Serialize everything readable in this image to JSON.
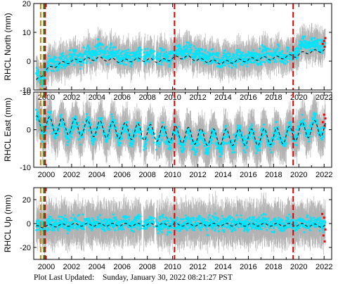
{
  "footer": {
    "label": "Plot Last Updated:",
    "date": "Sunday, January 30, 2022 08:21:27 PST"
  },
  "colors": {
    "daily_positions": "#00e5ff",
    "error_bars": "#b3b3b3",
    "recent_positions": "#ff0000",
    "model_fit": "#000000",
    "event_line_red": "#e00000",
    "event_line_green": "#2a8a2a",
    "event_line_orange": "#e07a00"
  },
  "chart_data": [
    {
      "type": "scatter",
      "ylabel": "RHCL North (mm)",
      "xlim": [
        1999.0,
        2022.6
      ],
      "ylim": [
        -10,
        20
      ],
      "yticks": [
        -10,
        0,
        10,
        20
      ],
      "xticks": [
        "2000",
        "2002",
        "2004",
        "2006",
        "2008",
        "2010",
        "2012",
        "2014",
        "2016",
        "2018",
        "2020",
        "2022"
      ],
      "series": [
        {
          "role": "daily",
          "points": [
            [
              1999.3,
              -5
            ],
            [
              1999.6,
              -7
            ],
            [
              1999.9,
              -3
            ],
            [
              2000.3,
              -1
            ],
            [
              2000.8,
              -0.5
            ],
            [
              2001.5,
              0
            ],
            [
              2002.2,
              1
            ],
            [
              2002.7,
              1.5
            ],
            [
              2003.2,
              2
            ],
            [
              2003.8,
              3
            ],
            [
              2004.2,
              4
            ],
            [
              2004.6,
              3
            ],
            [
              2005.2,
              2.5
            ],
            [
              2005.6,
              2
            ],
            [
              2006.2,
              1
            ],
            [
              2006.8,
              1.5
            ],
            [
              2007.3,
              2
            ],
            [
              2007.9,
              2
            ],
            [
              2008.6,
              2
            ],
            [
              2009.3,
              1.5
            ],
            [
              2009.8,
              1
            ],
            [
              2010.2,
              2.5
            ],
            [
              2010.7,
              3
            ],
            [
              2011.3,
              3
            ],
            [
              2012.0,
              2
            ],
            [
              2012.6,
              1.5
            ],
            [
              2013.3,
              1
            ],
            [
              2014.0,
              0.5
            ],
            [
              2014.7,
              0.5
            ],
            [
              2015.3,
              1
            ],
            [
              2016.0,
              1
            ],
            [
              2016.7,
              2
            ],
            [
              2017.3,
              2
            ],
            [
              2018.0,
              2
            ],
            [
              2018.7,
              2
            ],
            [
              2019.3,
              2
            ],
            [
              2019.8,
              3
            ],
            [
              2020.4,
              6
            ],
            [
              2021.0,
              6
            ],
            [
              2021.6,
              5
            ],
            [
              2022.0,
              6
            ]
          ]
        },
        {
          "role": "recent",
          "points": [
            [
              2021.9,
              6
            ],
            [
              2022.0,
              7
            ],
            [
              2022.05,
              5
            ],
            [
              2022.1,
              8
            ]
          ]
        }
      ],
      "model_fit": [
        [
          1999.2,
          -7
        ],
        [
          2000.0,
          -3
        ],
        [
          2001.0,
          -1
        ],
        [
          2002.0,
          0
        ],
        [
          2003.0,
          0.5
        ],
        [
          2004.0,
          1
        ],
        [
          2005.0,
          0.5
        ],
        [
          2006.0,
          0
        ],
        [
          2007.0,
          0.5
        ],
        [
          2008.0,
          0.5
        ],
        [
          2009.0,
          0
        ],
        [
          2010.0,
          1
        ],
        [
          2011.0,
          1.5
        ],
        [
          2012.0,
          0.5
        ],
        [
          2013.0,
          0
        ],
        [
          2014.0,
          -0.5
        ],
        [
          2015.0,
          0
        ],
        [
          2016.0,
          0.5
        ],
        [
          2017.0,
          1
        ],
        [
          2018.0,
          1
        ],
        [
          2019.0,
          1.5
        ],
        [
          2019.8,
          2
        ],
        [
          2020.5,
          3
        ],
        [
          2021.5,
          3.5
        ],
        [
          2022.1,
          4
        ]
      ],
      "seasonal_amplitude": 0.6,
      "scatter_halfwidth": 4,
      "error_halfwidth": 5,
      "events": [
        {
          "x": 1999.55,
          "color": "orange"
        },
        {
          "x": 1999.8,
          "color": "green"
        },
        {
          "x": 1999.9,
          "color": "red"
        },
        {
          "x": 2010.15,
          "color": "red"
        },
        {
          "x": 2019.55,
          "color": "red"
        }
      ]
    },
    {
      "type": "scatter",
      "ylabel": "RHCL East (mm)",
      "xlim": [
        1999.0,
        2022.6
      ],
      "ylim": [
        -10,
        10
      ],
      "yticks": [
        -10,
        0,
        10
      ],
      "xticks": [
        "2000",
        "2002",
        "2004",
        "2006",
        "2008",
        "2010",
        "2012",
        "2014",
        "2016",
        "2018",
        "2020",
        "2022"
      ],
      "series": [
        {
          "role": "daily",
          "points": [
            [
              1999.3,
              2
            ],
            [
              2000.0,
              1
            ],
            [
              2001.0,
              0.5
            ],
            [
              2002.0,
              0
            ],
            [
              2003.0,
              0.5
            ],
            [
              2004.0,
              0
            ],
            [
              2005.0,
              0
            ],
            [
              2006.0,
              -0.5
            ],
            [
              2007.0,
              -1
            ],
            [
              2008.0,
              -1.5
            ],
            [
              2009.0,
              -2
            ],
            [
              2010.0,
              -2
            ],
            [
              2011.0,
              -3
            ],
            [
              2012.0,
              -3
            ],
            [
              2013.0,
              -3
            ],
            [
              2014.0,
              -3.5
            ],
            [
              2015.0,
              -2
            ],
            [
              2016.0,
              -2
            ],
            [
              2017.0,
              -2.5
            ],
            [
              2018.0,
              -2
            ],
            [
              2019.0,
              -2
            ],
            [
              2020.0,
              0
            ],
            [
              2021.0,
              1
            ],
            [
              2022.0,
              1
            ]
          ]
        },
        {
          "role": "recent",
          "points": [
            [
              2021.9,
              2
            ],
            [
              2022.0,
              4
            ],
            [
              2022.05,
              1
            ],
            [
              2022.1,
              3
            ]
          ]
        }
      ],
      "model_fit": [
        [
          1999.2,
          1.5
        ],
        [
          2001.0,
          1
        ],
        [
          2003.0,
          0.5
        ],
        [
          2005.0,
          0
        ],
        [
          2007.0,
          -0.5
        ],
        [
          2009.0,
          -1
        ],
        [
          2011.0,
          -1.5
        ],
        [
          2013.0,
          -2
        ],
        [
          2015.0,
          -2
        ],
        [
          2017.0,
          -2
        ],
        [
          2019.0,
          -1.5
        ],
        [
          2020.5,
          0
        ],
        [
          2022.1,
          0.5
        ]
      ],
      "seasonal_amplitude": 2.2,
      "scatter_halfwidth": 3,
      "error_halfwidth": 5,
      "events": [
        {
          "x": 1999.55,
          "color": "orange"
        },
        {
          "x": 1999.8,
          "color": "green"
        },
        {
          "x": 1999.9,
          "color": "red"
        },
        {
          "x": 2010.15,
          "color": "red"
        },
        {
          "x": 2019.55,
          "color": "red"
        }
      ]
    },
    {
      "type": "scatter",
      "ylabel": "RHCL Up (mm)",
      "xlim": [
        1999.0,
        2022.6
      ],
      "ylim": [
        -30,
        30
      ],
      "yticks": [
        -20,
        0,
        20
      ],
      "xticks": [
        "2000",
        "2002",
        "2004",
        "2006",
        "2008",
        "2010",
        "2012",
        "2014",
        "2016",
        "2018",
        "2020",
        "2022"
      ],
      "series": [
        {
          "role": "daily",
          "points": [
            [
              1999.3,
              -2
            ],
            [
              2000.0,
              -1
            ],
            [
              2002.0,
              0
            ],
            [
              2004.0,
              0
            ],
            [
              2006.0,
              0
            ],
            [
              2008.0,
              0
            ],
            [
              2010.0,
              -1
            ],
            [
              2012.0,
              0
            ],
            [
              2014.0,
              0
            ],
            [
              2016.0,
              0
            ],
            [
              2018.0,
              0
            ],
            [
              2020.0,
              0
            ],
            [
              2022.0,
              0
            ]
          ]
        },
        {
          "role": "recent",
          "points": [
            [
              2021.85,
              8
            ],
            [
              2021.95,
              -10
            ],
            [
              2022.0,
              5
            ],
            [
              2022.05,
              -15
            ],
            [
              2022.1,
              -5
            ]
          ]
        }
      ],
      "model_fit": [
        [
          1999.2,
          -3
        ],
        [
          2000.0,
          -2
        ],
        [
          2002.0,
          -1
        ],
        [
          2004.0,
          -1
        ],
        [
          2006.0,
          -1
        ],
        [
          2008.0,
          -1
        ],
        [
          2010.0,
          -1
        ],
        [
          2012.0,
          -1
        ],
        [
          2014.0,
          -1
        ],
        [
          2016.0,
          -1
        ],
        [
          2018.0,
          -1
        ],
        [
          2020.0,
          -1
        ],
        [
          2022.1,
          -2
        ]
      ],
      "seasonal_amplitude": 1.2,
      "scatter_halfwidth": 9,
      "error_halfwidth": 16,
      "events": [
        {
          "x": 1999.55,
          "color": "orange"
        },
        {
          "x": 1999.8,
          "color": "green"
        },
        {
          "x": 1999.9,
          "color": "red"
        },
        {
          "x": 2010.15,
          "color": "red"
        },
        {
          "x": 2019.55,
          "color": "red"
        }
      ]
    }
  ]
}
